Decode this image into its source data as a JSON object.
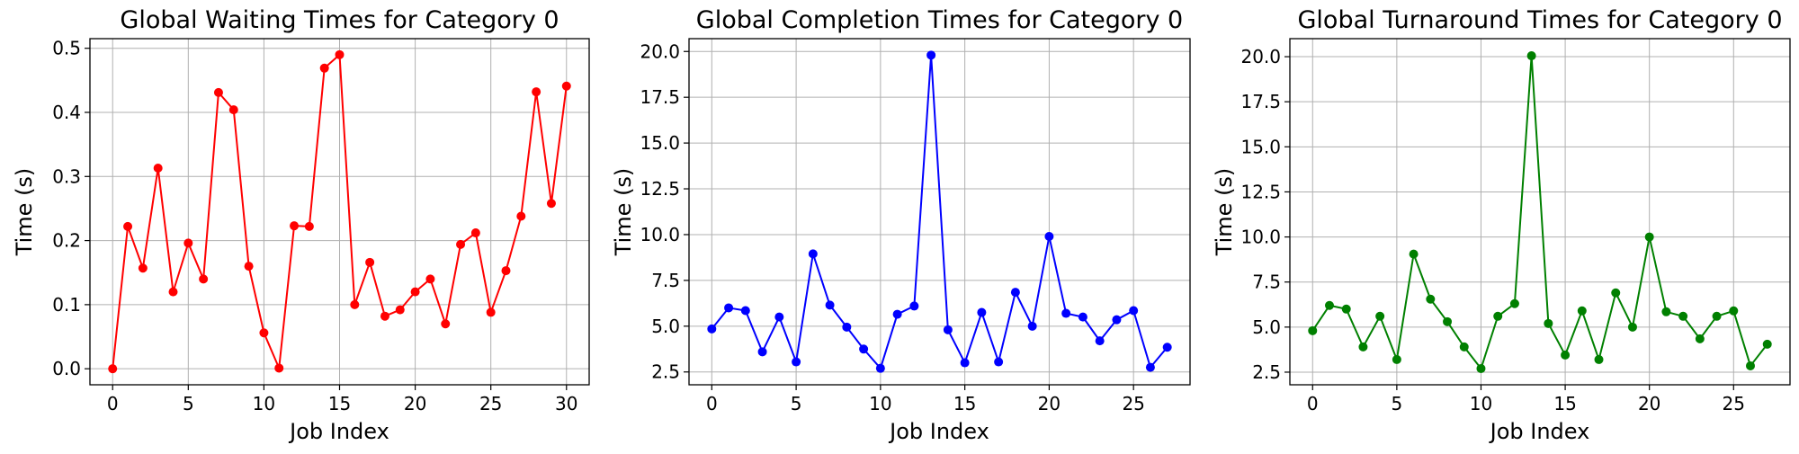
{
  "chart_data": [
    {
      "type": "line",
      "title": "Global Waiting Times for Category 0",
      "xlabel": "Job Index",
      "ylabel": "Time (s)",
      "color": "#ff0000",
      "grid": true,
      "xlim": [
        -1.5,
        31.5
      ],
      "ylim": [
        -0.025,
        0.515
      ],
      "xticks": [
        0,
        5,
        10,
        15,
        20,
        25,
        30
      ],
      "yticks": [
        0.0,
        0.1,
        0.2,
        0.3,
        0.4,
        0.5
      ],
      "ytick_labels": [
        "0.0",
        "0.1",
        "0.2",
        "0.3",
        "0.4",
        "0.5"
      ],
      "series": [
        {
          "x": [
            0,
            1,
            2,
            3,
            4,
            5,
            6,
            7,
            8,
            9,
            10,
            11,
            12,
            13,
            14,
            15,
            16,
            17,
            18,
            19,
            20,
            21,
            22,
            23,
            24,
            25,
            26,
            27,
            28,
            29,
            30
          ],
          "values": [
            0.0,
            0.222,
            0.157,
            0.313,
            0.12,
            0.196,
            0.14,
            0.431,
            0.404,
            0.16,
            0.056,
            0.001,
            0.223,
            0.222,
            0.469,
            0.49,
            0.1,
            0.166,
            0.082,
            0.092,
            0.12,
            0.14,
            0.07,
            0.194,
            0.212,
            0.088,
            0.153,
            0.238,
            0.432,
            0.258,
            0.441
          ]
        }
      ]
    },
    {
      "type": "line",
      "title": "Global Completion Times for Category 0",
      "xlabel": "Job Index",
      "ylabel": "Time (s)",
      "color": "#0000ff",
      "grid": true,
      "xlim": [
        -1.35,
        28.35
      ],
      "ylim": [
        1.8,
        20.7
      ],
      "xticks": [
        0,
        5,
        10,
        15,
        20,
        25
      ],
      "yticks": [
        2.5,
        5.0,
        7.5,
        10.0,
        12.5,
        15.0,
        17.5,
        20.0
      ],
      "ytick_labels": [
        "2.5",
        "5.0",
        "7.5",
        "10.0",
        "12.5",
        "15.0",
        "17.5",
        "20.0"
      ],
      "series": [
        {
          "x": [
            0,
            1,
            2,
            3,
            4,
            5,
            6,
            7,
            8,
            9,
            10,
            11,
            12,
            13,
            14,
            15,
            16,
            17,
            18,
            19,
            20,
            21,
            22,
            23,
            24,
            25,
            26,
            27
          ],
          "values": [
            4.85,
            6.0,
            5.85,
            3.6,
            5.5,
            3.05,
            8.95,
            6.15,
            4.95,
            3.75,
            2.7,
            5.65,
            6.1,
            19.8,
            4.8,
            3.0,
            5.75,
            3.05,
            6.85,
            5.0,
            9.9,
            5.7,
            5.5,
            4.2,
            5.35,
            5.85,
            2.75,
            3.85
          ]
        }
      ]
    },
    {
      "type": "line",
      "title": "Global Turnaround Times for Category 0",
      "xlabel": "Job Index",
      "ylabel": "Time (s)",
      "color": "#008000",
      "grid": true,
      "xlim": [
        -1.35,
        28.35
      ],
      "ylim": [
        1.8,
        21.0
      ],
      "xticks": [
        0,
        5,
        10,
        15,
        20,
        25
      ],
      "yticks": [
        2.5,
        5.0,
        7.5,
        10.0,
        12.5,
        15.0,
        17.5,
        20.0
      ],
      "ytick_labels": [
        "2.5",
        "5.0",
        "7.5",
        "10.0",
        "12.5",
        "15.0",
        "17.5",
        "20.0"
      ],
      "series": [
        {
          "x": [
            0,
            1,
            2,
            3,
            4,
            5,
            6,
            7,
            8,
            9,
            10,
            11,
            12,
            13,
            14,
            15,
            16,
            17,
            18,
            19,
            20,
            21,
            22,
            23,
            24,
            25,
            26,
            27
          ],
          "values": [
            4.8,
            6.2,
            6.0,
            3.9,
            5.6,
            3.2,
            9.05,
            6.55,
            5.3,
            3.9,
            2.7,
            5.6,
            6.3,
            20.05,
            5.2,
            3.45,
            5.9,
            3.2,
            6.9,
            5.0,
            10.0,
            5.85,
            5.6,
            4.35,
            5.6,
            5.9,
            2.85,
            4.05
          ]
        }
      ]
    }
  ]
}
